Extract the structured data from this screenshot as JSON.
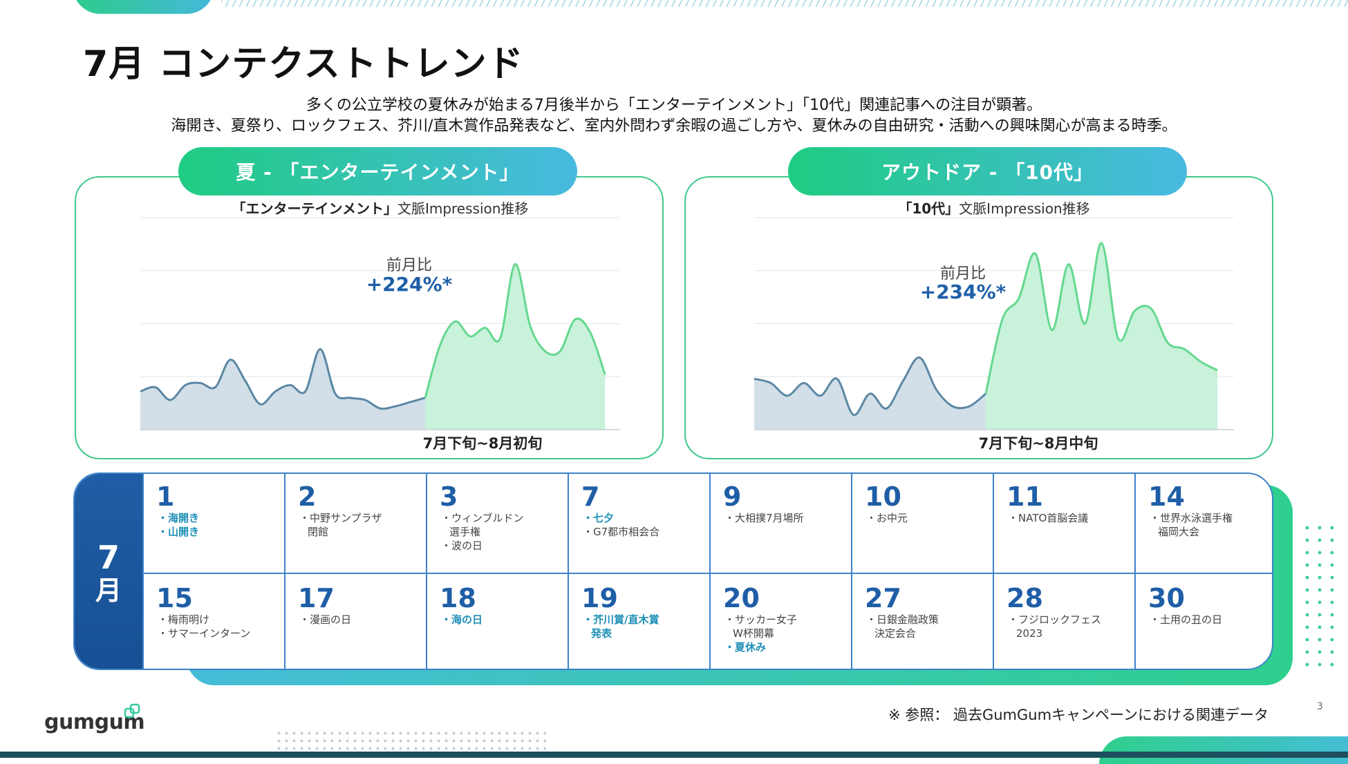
{
  "title": "7月 コンテクストトレンド",
  "description": [
    "多くの公立学校の夏休みが始まる7月後半から「エンターテインメント」「10代」関連記事への注目が顕著。",
    "海開き、夏祭り、ロックフェス、芥川/直木賞作品発表など、室内外問わず余暇の過ごし方や、夏休みの自由研究・活動への興味関心が高まる時季。"
  ],
  "panels": [
    {
      "heading": "夏 - 「エンターテインメント」",
      "chart_title_bold": "「エンターテインメント」",
      "chart_title_rest": "文脈Impression推移",
      "ratio_label": "前月比",
      "ratio_value": "+224%*",
      "period_label": "7月下旬~8月初旬"
    },
    {
      "heading": "アウトドア - 「10代」",
      "chart_title_bold": "「10代」",
      "chart_title_rest": "文脈Impression推移",
      "ratio_label": "前月比",
      "ratio_value": "+234%*",
      "period_label": "7月下旬~8月中旬"
    }
  ],
  "chart_data": [
    {
      "type": "area",
      "series": [
        {
          "values": [
            0.18,
            0.2,
            0.14,
            0.21,
            0.22,
            0.2,
            0.33,
            0.23,
            0.12,
            0.18,
            0.21,
            0.18,
            0.38,
            0.17,
            0.15,
            0.14,
            0.1,
            0.11,
            0.13,
            0.15
          ]
        },
        {
          "values": [
            0.15,
            0.4,
            0.51,
            0.44,
            0.48,
            0.43,
            0.78,
            0.49,
            0.37,
            0.37,
            0.52,
            0.46,
            0.26
          ]
        }
      ],
      "highlight_start_index": 19,
      "grid": true
    },
    {
      "type": "area",
      "series": [
        {
          "values": [
            0.24,
            0.22,
            0.16,
            0.22,
            0.16,
            0.24,
            0.07,
            0.17,
            0.1,
            0.23,
            0.34,
            0.19,
            0.11,
            0.11,
            0.17
          ]
        },
        {
          "values": [
            0.17,
            0.52,
            0.62,
            0.83,
            0.47,
            0.78,
            0.5,
            0.88,
            0.43,
            0.56,
            0.57,
            0.41,
            0.38,
            0.32,
            0.28
          ]
        }
      ],
      "highlight_start_index": 14,
      "grid": true
    }
  ],
  "calendar": {
    "month_number": "7",
    "month_unit": "月",
    "rows": [
      [
        {
          "day": "1",
          "events": [
            {
              "text": "・海開き",
              "hl": true
            },
            {
              "text": "・山開き",
              "hl": true
            }
          ]
        },
        {
          "day": "2",
          "events": [
            {
              "text": "・中野サンプラザ",
              "hl": false
            },
            {
              "text": "閉館",
              "hl": false,
              "indent": true
            }
          ]
        },
        {
          "day": "3",
          "events": [
            {
              "text": "・ウィンブルドン",
              "hl": false
            },
            {
              "text": "選手権",
              "hl": false,
              "indent": true
            },
            {
              "text": "・波の日",
              "hl": false
            }
          ]
        },
        {
          "day": "7",
          "events": [
            {
              "text": "・七夕",
              "hl": true
            },
            {
              "text": "・G7都市相会合",
              "hl": false
            }
          ]
        },
        {
          "day": "9",
          "events": [
            {
              "text": "・大相撲7月場所",
              "hl": false
            }
          ]
        },
        {
          "day": "10",
          "events": [
            {
              "text": "・お中元",
              "hl": false
            }
          ]
        },
        {
          "day": "11",
          "events": [
            {
              "text": "・NATO首脳会議",
              "hl": false
            }
          ]
        },
        {
          "day": "14",
          "events": [
            {
              "text": "・世界水泳選手権",
              "hl": false
            },
            {
              "text": "福岡大会",
              "hl": false,
              "indent": true
            }
          ]
        }
      ],
      [
        {
          "day": "15",
          "events": [
            {
              "text": "・梅雨明け",
              "hl": false
            },
            {
              "text": "・サマーインターン",
              "hl": false
            }
          ]
        },
        {
          "day": "17",
          "events": [
            {
              "text": "・漫画の日",
              "hl": false
            }
          ]
        },
        {
          "day": "18",
          "events": [
            {
              "text": "・海の日",
              "hl": true
            }
          ]
        },
        {
          "day": "19",
          "events": [
            {
              "text": "・芥川賞/直木賞",
              "hl": true
            },
            {
              "text": "発表",
              "hl": true,
              "indent": true
            }
          ]
        },
        {
          "day": "20",
          "events": [
            {
              "text": "・サッカー女子",
              "hl": false
            },
            {
              "text": "W杯開幕",
              "hl": false,
              "indent": true
            },
            {
              "text": "・夏休み",
              "hl": true
            }
          ]
        },
        {
          "day": "27",
          "events": [
            {
              "text": "・日銀金融政策",
              "hl": false
            },
            {
              "text": "決定会合",
              "hl": false,
              "indent": true
            }
          ]
        },
        {
          "day": "28",
          "events": [
            {
              "text": "・フジロックフェス",
              "hl": false
            },
            {
              "text": "2023",
              "hl": false,
              "indent": true
            }
          ]
        },
        {
          "day": "30",
          "events": [
            {
              "text": "・土用の丑の日",
              "hl": false
            }
          ]
        }
      ]
    ]
  },
  "footer": {
    "logo": "gumgum",
    "reference": "※ 参照： 過去GumGumキャンペーンにおける関連データ",
    "page_number": "3"
  },
  "colors": {
    "accent_green": "#2ecc8a",
    "accent_blue": "#45b8dc",
    "navy": "#1f5ea6",
    "past_fill": "#d2dfe8",
    "past_line": "#5b87a4",
    "highlight_fill": "#c8f2da",
    "highlight_line": "#64d88e"
  }
}
